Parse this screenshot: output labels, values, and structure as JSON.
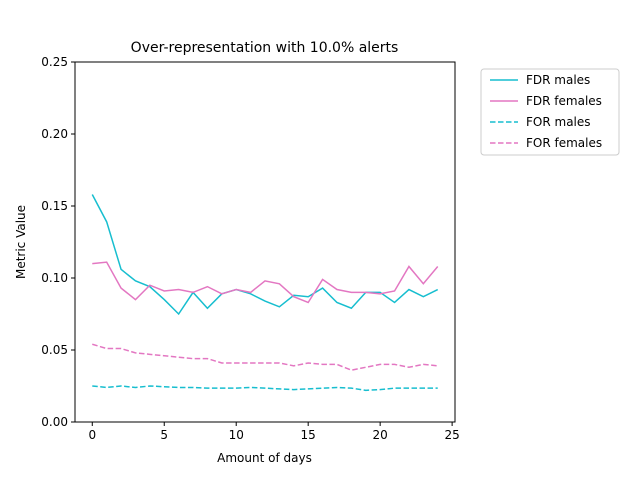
{
  "chart_data": {
    "type": "line",
    "title": "Over-representation with 10.0% alerts",
    "xlabel": "Amount of days",
    "ylabel": "Metric Value",
    "xlim": [
      -1.2,
      25.2
    ],
    "ylim": [
      0.0,
      0.25
    ],
    "xticks": [
      0,
      5,
      10,
      15,
      20,
      25
    ],
    "xtick_labels": [
      "0",
      "5",
      "10",
      "15",
      "20",
      "25"
    ],
    "yticks": [
      0.0,
      0.05,
      0.1,
      0.15,
      0.2,
      0.25
    ],
    "ytick_labels": [
      "0.00",
      "0.05",
      "0.10",
      "0.15",
      "0.20",
      "0.25"
    ],
    "grid": false,
    "legend_position": "outside-top-right",
    "x": [
      0,
      1,
      2,
      3,
      4,
      5,
      6,
      7,
      8,
      9,
      10,
      11,
      12,
      13,
      14,
      15,
      16,
      17,
      18,
      19,
      20,
      21,
      22,
      23,
      24
    ],
    "series": [
      {
        "name": "FDR males",
        "color": "#17becf",
        "dash": "solid",
        "values": [
          0.158,
          0.139,
          0.106,
          0.098,
          0.094,
          0.085,
          0.075,
          0.09,
          0.079,
          0.089,
          0.092,
          0.089,
          0.084,
          0.08,
          0.088,
          0.087,
          0.093,
          0.083,
          0.079,
          0.09,
          0.09,
          0.083,
          0.092,
          0.087,
          0.092
        ]
      },
      {
        "name": "FDR females",
        "color": "#e377c2",
        "dash": "solid",
        "values": [
          0.11,
          0.111,
          0.093,
          0.085,
          0.095,
          0.091,
          0.092,
          0.09,
          0.094,
          0.089,
          0.092,
          0.09,
          0.098,
          0.096,
          0.087,
          0.083,
          0.099,
          0.092,
          0.09,
          0.09,
          0.089,
          0.091,
          0.108,
          0.096,
          0.108
        ]
      },
      {
        "name": "FOR males",
        "color": "#17becf",
        "dash": "dashed",
        "values": [
          0.025,
          0.024,
          0.025,
          0.024,
          0.025,
          0.0245,
          0.024,
          0.024,
          0.0235,
          0.0235,
          0.0235,
          0.024,
          0.0235,
          0.023,
          0.0225,
          0.023,
          0.0235,
          0.024,
          0.0235,
          0.022,
          0.0225,
          0.0235,
          0.0235,
          0.0235,
          0.0235
        ]
      },
      {
        "name": "FOR females",
        "color": "#e377c2",
        "dash": "dashed",
        "values": [
          0.054,
          0.051,
          0.051,
          0.048,
          0.047,
          0.046,
          0.045,
          0.044,
          0.044,
          0.041,
          0.041,
          0.041,
          0.041,
          0.041,
          0.039,
          0.041,
          0.04,
          0.04,
          0.036,
          0.038,
          0.04,
          0.04,
          0.038,
          0.04,
          0.039
        ]
      }
    ]
  }
}
